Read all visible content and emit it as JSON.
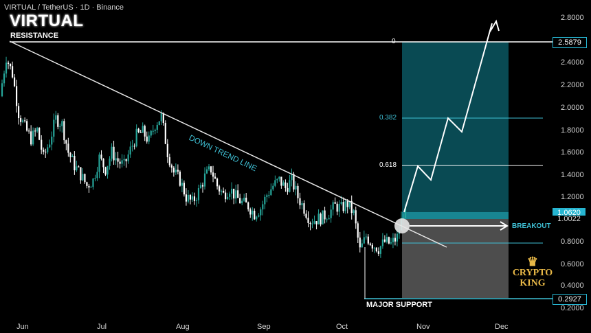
{
  "header": {
    "symbol_line": "VIRTUAL / TetherUS · 1D · Binance",
    "title": "VIRTUAL"
  },
  "annotations": {
    "resistance": "RESISTANCE",
    "down_trend": "DOWN TREND LINE",
    "breakout": "BREAKOUT",
    "major_support": "MAJOR SUPPORT"
  },
  "logo": {
    "crown": "♛",
    "line1": "CRYPTO",
    "line2": "KING"
  },
  "colors": {
    "background": "#000000",
    "candle_up": "#26a69a",
    "candle_down": "#ffffff",
    "target_zone": "#0b5762",
    "stop_zone": "#5a5a5a",
    "badge": "#26b5d1"
  },
  "chart_data": {
    "type": "candlestick",
    "pair": "VIRTUAL / TetherUS",
    "timeframe": "1D",
    "exchange": "Binance",
    "x_ticks": [
      "Jun",
      "Jul",
      "Aug",
      "Sep",
      "Oct",
      "Nov",
      "Dec"
    ],
    "y_ticks": [
      "2.8000",
      "2.6000",
      "2.4000",
      "2.2000",
      "2.0000",
      "1.8000",
      "1.6000",
      "1.4000",
      "1.2000",
      "1.0000",
      "0.8000",
      "0.6000",
      "0.4000",
      "0.2000"
    ],
    "ylim": [
      0.16,
      2.86
    ],
    "price_badges": [
      {
        "label": "2.5879",
        "value": 2.5879,
        "style": "outline"
      },
      {
        "label": "1.0620",
        "value": 1.062,
        "style": "filled"
      },
      {
        "label": "1.0022",
        "value": 1.0022,
        "style": "plain"
      },
      {
        "label": "0.2927",
        "value": 0.2927,
        "style": "outline"
      }
    ],
    "fib_levels": [
      {
        "label": "0",
        "value": 2.5879
      },
      {
        "label": "0.382",
        "value": 1.89
      },
      {
        "label": "0.618",
        "value": 1.475
      }
    ],
    "candles_close_path": [
      [
        0,
        2.1
      ],
      [
        3,
        2.45
      ],
      [
        6,
        2.3
      ],
      [
        9,
        1.95
      ],
      [
        12,
        1.82
      ],
      [
        15,
        1.72
      ],
      [
        18,
        1.8
      ],
      [
        21,
        1.55
      ],
      [
        24,
        1.7
      ],
      [
        27,
        1.9
      ],
      [
        30,
        1.85
      ],
      [
        33,
        1.6
      ],
      [
        36,
        1.48
      ],
      [
        39,
        1.4
      ],
      [
        42,
        1.3
      ],
      [
        45,
        1.35
      ],
      [
        48,
        1.55
      ],
      [
        51,
        1.45
      ],
      [
        54,
        1.6
      ],
      [
        57,
        1.52
      ],
      [
        60,
        1.48
      ],
      [
        63,
        1.62
      ],
      [
        66,
        1.75
      ],
      [
        69,
        1.78
      ],
      [
        72,
        1.7
      ],
      [
        75,
        1.85
      ],
      [
        78,
        1.92
      ],
      [
        81,
        1.6
      ],
      [
        84,
        1.42
      ],
      [
        87,
        1.35
      ],
      [
        90,
        1.2
      ],
      [
        93,
        1.15
      ],
      [
        96,
        1.25
      ],
      [
        99,
        1.38
      ],
      [
        102,
        1.45
      ],
      [
        105,
        1.3
      ],
      [
        108,
        1.22
      ],
      [
        111,
        1.28
      ],
      [
        114,
        1.2
      ],
      [
        117,
        1.15
      ],
      [
        120,
        1.12
      ],
      [
        123,
        1.05
      ],
      [
        126,
        1.1
      ],
      [
        129,
        1.22
      ],
      [
        132,
        1.3
      ],
      [
        135,
        1.35
      ],
      [
        138,
        1.28
      ],
      [
        141,
        1.35
      ],
      [
        144,
        1.2
      ],
      [
        147,
        1.1
      ],
      [
        150,
        0.99
      ],
      [
        153,
        1.0
      ],
      [
        156,
        1.02
      ],
      [
        159,
        1.06
      ],
      [
        162,
        1.12
      ],
      [
        165,
        1.1
      ],
      [
        168,
        1.14
      ],
      [
        171,
        1.05
      ],
      [
        174,
        0.72
      ],
      [
        177,
        0.85
      ],
      [
        180,
        0.78
      ],
      [
        183,
        0.74
      ],
      [
        186,
        0.8
      ],
      [
        189,
        0.78
      ],
      [
        192,
        0.84
      ],
      [
        195,
        1.06
      ]
    ],
    "trend_line": {
      "from": [
        0,
        2.59
      ],
      "to": [
        196,
        0.95
      ]
    },
    "projection_path": [
      [
        196,
        1.062
      ],
      [
        202,
        1.47
      ],
      [
        209,
        1.35
      ],
      [
        220,
        1.9
      ],
      [
        227,
        1.78
      ],
      [
        240,
        2.58
      ],
      [
        245,
        2.82
      ]
    ]
  }
}
